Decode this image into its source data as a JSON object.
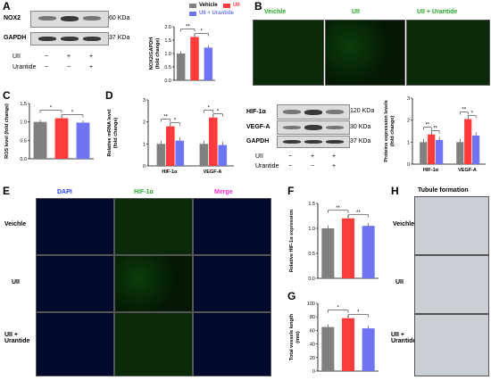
{
  "panels": {
    "A": "A",
    "B": "B",
    "C": "C",
    "D": "D",
    "E": "E",
    "F": "F",
    "G": "G",
    "H": "H"
  },
  "western_a": {
    "rows": [
      "NOX2",
      "GAPDH"
    ],
    "mw": [
      "60 KDa",
      "37 KDa"
    ],
    "treat_rows": [
      "UII",
      "Urantide"
    ],
    "uii": [
      "−",
      "+",
      "+"
    ],
    "urantide": [
      "−",
      "−",
      "+"
    ]
  },
  "legend": [
    "Vehicle",
    "UII",
    "UII + Urantide"
  ],
  "group_labels": [
    "Veichle",
    "UII",
    "UII + Urantide"
  ],
  "western_b": {
    "rows": [
      "HIF-1α",
      "VEGF-A",
      "GAPDH"
    ],
    "mw": [
      "120 KDa",
      "30 KDa",
      "37 KDa"
    ],
    "treat_rows": [
      "UII",
      "Urantide"
    ],
    "uii": [
      "−",
      "+",
      "+"
    ],
    "urantide": [
      "−",
      "−",
      "+"
    ]
  },
  "panel_e": {
    "cols": [
      "DAPI",
      "HIF-1α",
      "Merge"
    ],
    "rows": [
      "Veichle",
      "UII",
      "UII +\nUrantide"
    ],
    "col_colors": [
      "#1f3fff",
      "#2aa52a",
      "#ff2ad0"
    ]
  },
  "panel_h": {
    "title": "Tubule formation",
    "rows": [
      "Veichle",
      "UII",
      "UII +\nUrantide"
    ]
  },
  "colors": {
    "vehicle": "#808080",
    "uii": "#ff3b3b",
    "urantide": "#6f74f2"
  },
  "chart_data": [
    {
      "id": "A-bar",
      "type": "bar",
      "ylabel": "NOX2/GAPDH\n(fold change)",
      "categories": [
        "Vehicle",
        "UII",
        "UII + Urantide"
      ],
      "values": [
        1.0,
        1.62,
        1.22
      ],
      "ylim": [
        0,
        2.0
      ],
      "yticks": [
        "0.0",
        "0.5",
        "1.0",
        "1.5",
        "2.0"
      ],
      "sig": [
        "**",
        "*"
      ]
    },
    {
      "id": "C",
      "type": "bar",
      "ylabel": "ROS level (fold change)",
      "categories": [
        "Vehicle",
        "UII",
        "UII + Urantide"
      ],
      "values": [
        1.0,
        1.1,
        0.98
      ],
      "ylim": [
        0,
        1.5
      ],
      "yticks": [
        "0.0",
        "0.5",
        "1.0",
        "1.5"
      ],
      "sig": [
        "*",
        "*"
      ]
    },
    {
      "id": "D-mrna",
      "type": "bar",
      "ylabel": "Relative mRNA  level\n(fold change)",
      "categories": [
        "HIF-1α",
        "VEGF-A"
      ],
      "series": [
        {
          "name": "Vehicle",
          "values": [
            1.0,
            1.0
          ]
        },
        {
          "name": "UII",
          "values": [
            1.8,
            2.2
          ]
        },
        {
          "name": "UII + Urantide",
          "values": [
            1.15,
            0.95
          ]
        }
      ],
      "ylim": [
        0,
        3
      ],
      "yticks": [
        "0",
        "1",
        "2",
        "3"
      ],
      "sig": [
        "**",
        "*",
        "*",
        "*"
      ]
    },
    {
      "id": "D-protein",
      "type": "bar",
      "ylabel": "Proteins expression levels\n(fold change)",
      "categories": [
        "HIF-1α",
        "VEGF-A"
      ],
      "series": [
        {
          "name": "Vehicle",
          "values": [
            1.0,
            1.0
          ]
        },
        {
          "name": "UII",
          "values": [
            1.35,
            2.05
          ]
        },
        {
          "name": "UII + Urantide",
          "values": [
            1.1,
            1.3
          ]
        }
      ],
      "ylim": [
        0,
        3
      ],
      "yticks": [
        "0",
        "1",
        "2",
        "3"
      ],
      "sig": [
        "**",
        "**",
        "**",
        "*"
      ]
    },
    {
      "id": "F",
      "type": "bar",
      "ylabel": "Relative HIF-1α expression",
      "categories": [
        "Vehicle",
        "UII",
        "UII + Urantide"
      ],
      "values": [
        1.0,
        1.2,
        1.05
      ],
      "ylim": [
        0,
        1.5
      ],
      "yticks": [
        "0.0",
        "0.5",
        "1.0",
        "1.5"
      ],
      "sig": [
        "**",
        "**"
      ]
    },
    {
      "id": "G",
      "type": "bar",
      "ylabel": "Total vessels length\n(mm)",
      "categories": [
        "Vehicle",
        "UII",
        "UII + Urantide"
      ],
      "values": [
        65,
        78,
        63
      ],
      "ylim": [
        0,
        100
      ],
      "yticks": [
        "0",
        "20",
        "40",
        "60",
        "80",
        "100"
      ],
      "sig": [
        "*",
        "*"
      ]
    }
  ]
}
